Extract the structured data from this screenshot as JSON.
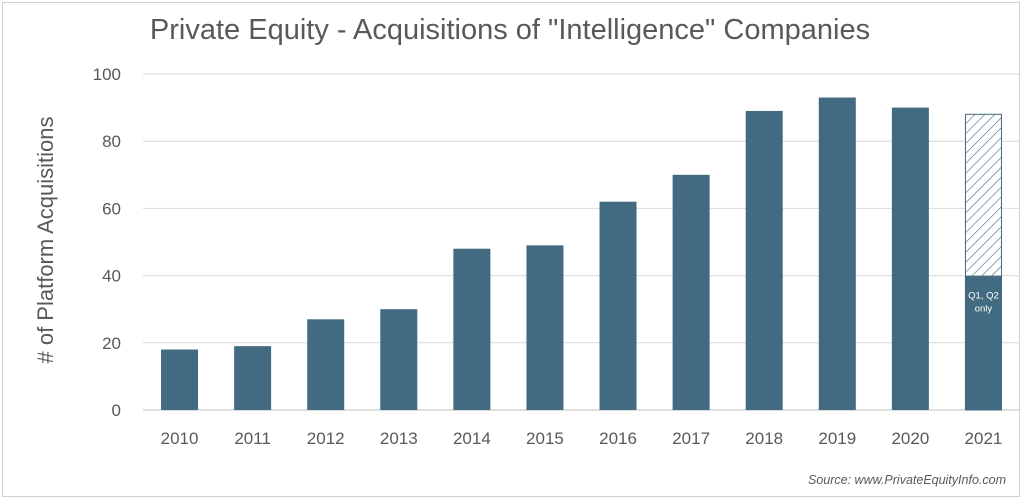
{
  "chart_data": {
    "type": "bar",
    "title": "Private Equity - Acquisitions of \"Intelligence\" Companies",
    "ylabel": "# of Platform Acquisitions",
    "xlabel": "",
    "categories": [
      "2010",
      "2011",
      "2012",
      "2013",
      "2014",
      "2015",
      "2016",
      "2017",
      "2018",
      "2019",
      "2020",
      "2021"
    ],
    "values": [
      18,
      19,
      27,
      30,
      48,
      49,
      62,
      70,
      89,
      93,
      90,
      40
    ],
    "projected": {
      "category": "2021",
      "value": 88,
      "pattern": "hatched"
    },
    "annotation": {
      "category": "2021",
      "text_lines": [
        "Q1, Q2",
        "only"
      ]
    },
    "ylim": [
      0,
      100
    ],
    "yticks": [
      0,
      20,
      40,
      60,
      80,
      100
    ],
    "grid": true,
    "legend": "none",
    "bar_color": "#426a80",
    "hatch_color": "#426a80",
    "source": "Source: www.PrivateEquityInfo.com"
  }
}
